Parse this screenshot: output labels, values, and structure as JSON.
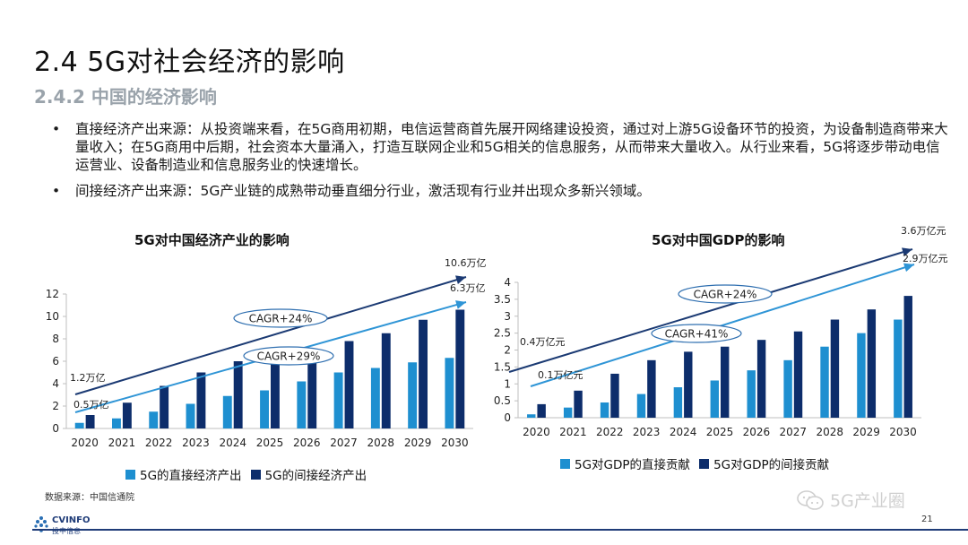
{
  "header": {
    "title": "2.4 5G对社会经济的影响",
    "subtitle": "2.4.2 中国的经济影响"
  },
  "bullets": [
    "直接经济产出来源：从投资端来看，在5G商用初期，电信运营商首先展开网络建设投资，通过对上游5G设备环节的投资，为设备制造商带来大量收入；在5G商用中后期，社会资本大量涌入，打造互联网企业和5G相关的信息服务，从而带来大量收入。从行业来看，5G将逐步带动电信运营业、设备制造业和信息服务业的快速增长。",
    "间接经济产出来源：5G产业链的成熟带动垂直细分行业，激活现有行业并出现众多新兴领域。"
  ],
  "colors": {
    "light_series": "#1e8fd0",
    "dark_series": "#0d2d6b",
    "light_arrow": "#2f95d6",
    "dark_arrow": "#1b3a73",
    "subtitle": "#9aa3ab"
  },
  "chart_data": [
    {
      "type": "bar",
      "title": "5G对中国经济产业的影响",
      "categories": [
        "2020",
        "2021",
        "2022",
        "2023",
        "2024",
        "2025",
        "2026",
        "2027",
        "2028",
        "2029",
        "2030"
      ],
      "series": [
        {
          "name": "5G的直接经济产出",
          "values": [
            0.5,
            0.9,
            1.5,
            2.2,
            2.9,
            3.4,
            4.2,
            5.0,
            5.4,
            5.9,
            6.3
          ]
        },
        {
          "name": "5G的间接经济产出",
          "values": [
            1.2,
            2.3,
            3.8,
            5.0,
            6.0,
            5.8,
            6.0,
            7.8,
            8.5,
            9.7,
            10.6
          ]
        }
      ],
      "ylim": [
        0,
        12
      ],
      "yticks": [
        "0",
        "2",
        "4",
        "6",
        "8",
        "10",
        "12"
      ],
      "annotations": {
        "dark_start": "1.2万亿",
        "light_start": "0.5万亿",
        "dark_end": "10.6万亿",
        "light_end": "6.3万亿",
        "dark_cagr": "CAGR+24%",
        "light_cagr": "CAGR+29%"
      }
    },
    {
      "type": "bar",
      "title": "5G对中国GDP的影响",
      "categories": [
        "2020",
        "2021",
        "2022",
        "2023",
        "2024",
        "2025",
        "2026",
        "2027",
        "2028",
        "2029",
        "2030"
      ],
      "series": [
        {
          "name": "5G对GDP的直接贡献",
          "values": [
            0.1,
            0.3,
            0.45,
            0.7,
            0.9,
            1.1,
            1.4,
            1.7,
            2.1,
            2.5,
            2.9
          ]
        },
        {
          "name": "5G对GDP的间接贡献",
          "values": [
            0.4,
            0.8,
            1.3,
            1.7,
            1.95,
            2.1,
            2.3,
            2.55,
            2.9,
            3.2,
            3.6
          ]
        }
      ],
      "ylim": [
        0,
        4
      ],
      "yticks": [
        "0",
        "0.5",
        "1",
        "1.5",
        "2",
        "2.5",
        "3",
        "3.5",
        "4"
      ],
      "annotations": {
        "dark_start": "0.4万亿元",
        "light_start": "0.1万亿元",
        "dark_end": "3.6万亿元",
        "light_end": "2.9万亿元",
        "dark_cagr": "CAGR+24%",
        "light_cagr": "CAGR+41%"
      }
    }
  ],
  "footer": {
    "source": "数据来源：中国信通院",
    "logo_text": "CVINFO",
    "logo_subtext": "投中信息",
    "watermark": "5G产业圈",
    "page_number": "21"
  }
}
